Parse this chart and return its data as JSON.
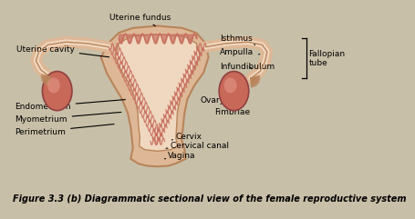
{
  "title": "Figure 3.3 (b) Diagrammatic sectional view of the female reproductive system",
  "bg_color": "#c8bfa8",
  "uterus_fill": "#deb896",
  "uterus_outline": "#b8845a",
  "inner_fill": "#f0d8c0",
  "endo_color": "#c87060",
  "ovary_fill": "#c86858",
  "ovary_highlight": "#e09080",
  "tube_fill": "#deb896",
  "tube_outline": "#b8845a",
  "label_fontsize": 6.5,
  "title_fontsize": 7.0
}
